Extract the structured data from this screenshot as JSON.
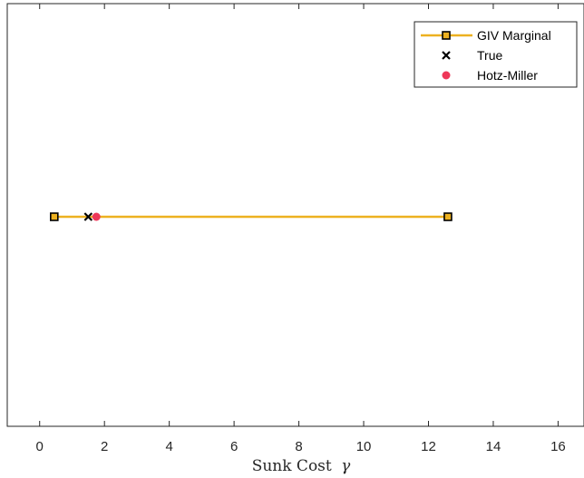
{
  "chart_data": {
    "type": "scatter",
    "xlabel": "Sunk Cost",
    "xlabel_symbol": "γ",
    "xlim": [
      -1,
      16.8
    ],
    "xticks": [
      0,
      2,
      4,
      6,
      8,
      10,
      12,
      14,
      16
    ],
    "grid": false,
    "legend_position": "top-right",
    "series": [
      {
        "name": "GIV Marginal",
        "kind": "line-with-square-markers",
        "color": "#EDB120",
        "marker_edge": "#000000",
        "x": [
          0.45,
          12.6
        ],
        "y": [
          0,
          0
        ]
      },
      {
        "name": "True",
        "kind": "x-marker",
        "color": "#000000",
        "x": [
          1.5
        ],
        "y": [
          0
        ]
      },
      {
        "name": "Hotz-Miller",
        "kind": "filled-circle",
        "color": "#EE3758",
        "x": [
          1.75
        ],
        "y": [
          0
        ]
      }
    ]
  }
}
